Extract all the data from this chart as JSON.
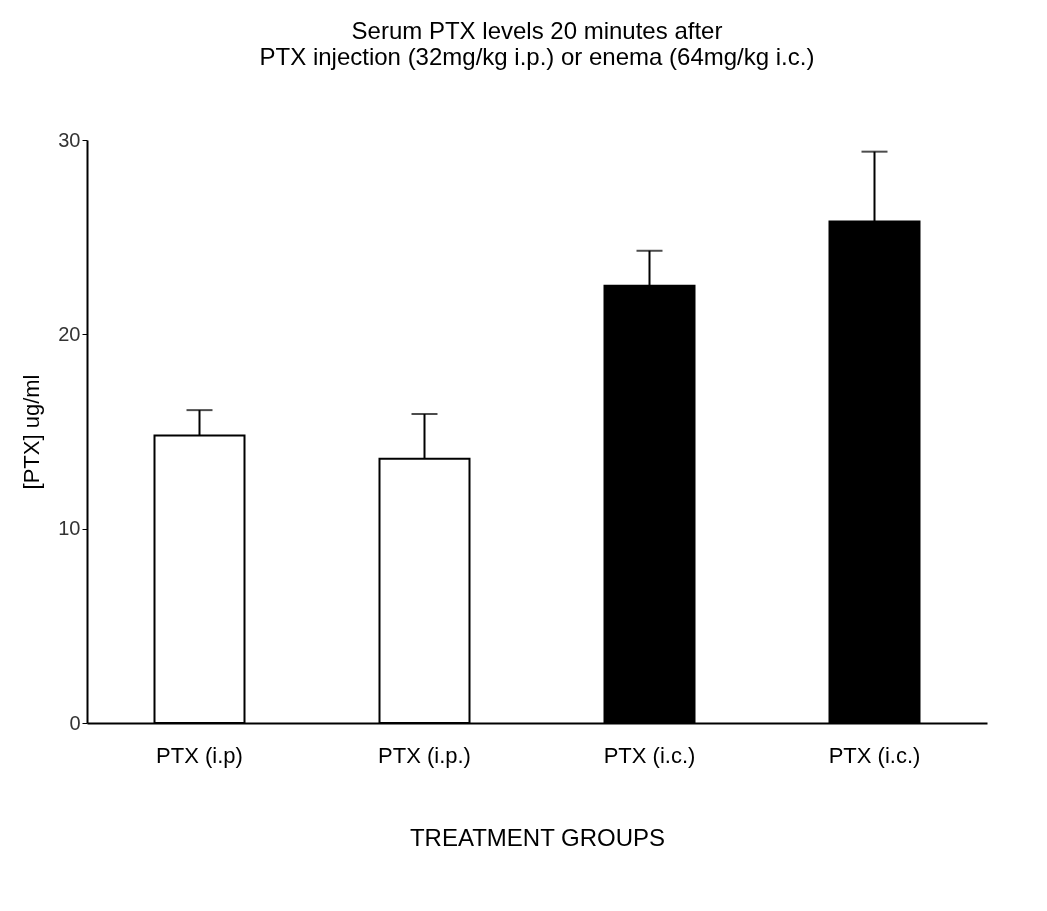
{
  "chart_data": {
    "type": "bar",
    "title": "Serum PTX levels 20 minutes after\nPTX injection (32mg/kg i.p.) or enema (64mg/kg i.c.)",
    "xlabel": "TREATMENT GROUPS",
    "ylabel": "[PTX] ug/ml",
    "categories": [
      "PTX (i.p)",
      "PTX (i.p.)",
      "PTX (i.c.)",
      "PTX (i.c.)"
    ],
    "values": [
      14.8,
      13.6,
      22.5,
      25.8
    ],
    "errors": [
      [
        14.8,
        16.1
      ],
      [
        13.6,
        15.9
      ],
      [
        22.5,
        24.3
      ],
      [
        25.8,
        29.4
      ]
    ],
    "colors": [
      "#ffffff",
      "#ffffff",
      "#000000",
      "#000000"
    ],
    "ylim": [
      0,
      30
    ],
    "yticks": [
      0,
      10,
      20,
      30
    ],
    "grid": false
  }
}
